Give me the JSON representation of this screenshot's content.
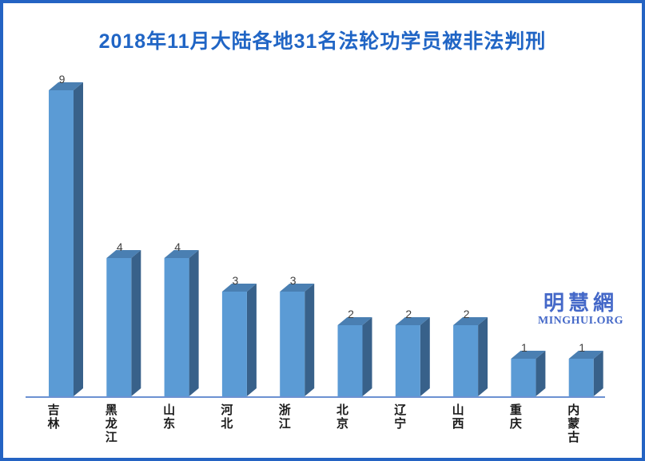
{
  "frame": {
    "background": "#ffffff",
    "border_color": "#2463c3"
  },
  "header": {
    "title": "2018年11月大陆各地31名法轮功学员被非法判刑",
    "title_color": "#2065c5"
  },
  "watermark": {
    "logo_text": "明慧網",
    "site_text": "MINGHUI.ORG",
    "color": "#4468c8"
  },
  "chart_data": {
    "type": "bar",
    "style": "3d-column",
    "title": "2018年11月大陆各地31名法轮功学员被非法判刑",
    "categories": [
      "吉林",
      "黑龙江",
      "山东",
      "河北",
      "浙江",
      "北京",
      "辽宁",
      "山西",
      "重庆",
      "内蒙古"
    ],
    "values": [
      9,
      4,
      4,
      3,
      3,
      2,
      2,
      2,
      1,
      1
    ],
    "total_stated_in_title": 31,
    "xlabel": "",
    "ylabel": "",
    "ylim": [
      0,
      9
    ],
    "grid": false,
    "legend": "none",
    "data_labels": true,
    "colors": {
      "bar_front": "#5b9bd5",
      "bar_top": "#4a7fb2",
      "bar_side": "#38618a",
      "axis_line": "#6c91d2",
      "value_label": "#3d3d3d",
      "category_label": "#1a1a1a"
    }
  }
}
